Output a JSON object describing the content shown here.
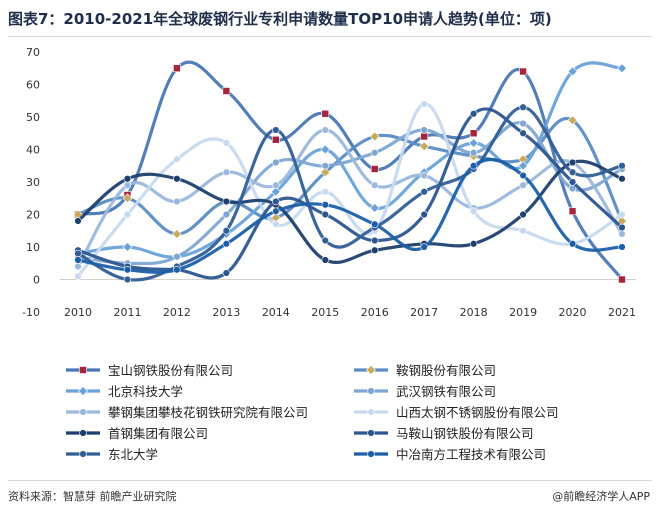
{
  "title": "图表7：2010-2021年全球废钢行业专利申请数量TOP10申请人趋势(单位：项)",
  "source": "资料来源：智慧芽 前瞻产业研究院",
  "brand": "@前瞻经济学人APP",
  "chart_data": {
    "type": "line",
    "x": [
      "2010",
      "2011",
      "2012",
      "2013",
      "2014",
      "2015",
      "2016",
      "2017",
      "2018",
      "2019",
      "2020",
      "2021"
    ],
    "ylim": [
      -10,
      70
    ],
    "yticks": [
      -10,
      0,
      10,
      20,
      30,
      40,
      50,
      60,
      70
    ],
    "grid": false,
    "legend_position": "bottom",
    "smooth": true,
    "series": [
      {
        "name": "宝山钢铁股份有限公司",
        "color": "#4a77b4",
        "marker": "square",
        "marker_color": "#a3243b",
        "values": [
          20,
          26,
          65,
          58,
          43,
          51,
          34,
          44,
          45,
          64,
          21,
          0
        ]
      },
      {
        "name": "鞍钢股份有限公司",
        "color": "#5b8cc4",
        "marker": "diamond",
        "marker_color": "#c9a85a",
        "values": [
          20,
          25,
          14,
          24,
          19,
          33,
          44,
          41,
          38,
          37,
          49,
          18
        ]
      },
      {
        "name": "北京科技大学",
        "color": "#6aa2d8",
        "marker": "diamond",
        "marker_color": "#6aa2d8",
        "values": [
          8,
          10,
          7,
          14,
          27,
          40,
          22,
          33,
          42,
          35,
          64,
          65
        ]
      },
      {
        "name": "武汉钢铁有限公司",
        "color": "#7fa6d2",
        "marker": "circle",
        "marker_color": "#7fa6d2",
        "values": [
          7,
          5,
          7,
          20,
          36,
          35,
          39,
          46,
          39,
          48,
          28,
          34
        ]
      },
      {
        "name": "攀钢集团攀枝花钢铁研究院有限公司",
        "color": "#9ab8dc",
        "marker": "circle",
        "marker_color": "#9ab8dc",
        "values": [
          4,
          29,
          24,
          33,
          29,
          46,
          29,
          32,
          22,
          29,
          36,
          14
        ]
      },
      {
        "name": "山西太钢不锈钢股份有限公司",
        "color": "#c6d9ee",
        "marker": "circle",
        "marker_color": "#c6d9ee",
        "values": [
          1,
          20,
          37,
          42,
          17,
          27,
          15,
          54,
          21,
          15,
          11,
          20
        ]
      },
      {
        "name": "首钢集团有限公司",
        "color": "#1e3f6e",
        "marker": "circle",
        "marker_color": "#1e3f6e",
        "values": [
          18,
          31,
          31,
          24,
          23,
          6,
          9,
          11,
          11,
          20,
          36,
          31
        ]
      },
      {
        "name": "马鞍山钢铁股份有限公司",
        "color": "#2c558f",
        "marker": "circle",
        "marker_color": "#2c558f",
        "values": [
          9,
          4,
          3,
          2,
          24,
          20,
          12,
          20,
          51,
          45,
          30,
          16
        ]
      },
      {
        "name": "东北大学",
        "color": "#325e96",
        "marker": "circle",
        "marker_color": "#325e96",
        "values": [
          8,
          0,
          4,
          15,
          46,
          12,
          16,
          27,
          34,
          53,
          33,
          35
        ]
      },
      {
        "name": "中冶南方工程技术有限公司",
        "color": "#1b5fa8",
        "marker": "circle",
        "marker_color": "#1b5fa8",
        "values": [
          6,
          3,
          3,
          11,
          21,
          23,
          17,
          10,
          35,
          32,
          11,
          10
        ]
      }
    ]
  }
}
